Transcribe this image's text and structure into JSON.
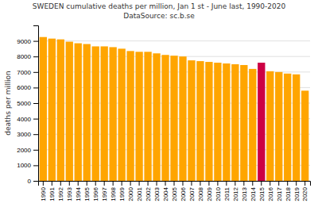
{
  "chart_data": {
    "type": "bar",
    "title": "SWEDEN cumulative deaths per million, Jan 1 st - June last, 1990-2020",
    "subtitle": "DataSource: sc.b.se",
    "ylabel": "deaths per million",
    "categories": [
      "1990",
      "1991",
      "1992",
      "1993",
      "1994",
      "1995",
      "1996",
      "1997",
      "1998",
      "1999",
      "2000",
      "2001",
      "2002",
      "2003",
      "2004",
      "2005",
      "2006",
      "2007",
      "2008",
      "2009",
      "2010",
      "2011",
      "2012",
      "2013",
      "2014",
      "2015",
      "2016",
      "2017",
      "2018",
      "2019",
      "2020"
    ],
    "values": [
      9250,
      9150,
      9100,
      8950,
      8850,
      8800,
      8650,
      8650,
      8600,
      8500,
      8350,
      8300,
      8300,
      8200,
      8100,
      8050,
      8000,
      7750,
      7700,
      7650,
      7600,
      7550,
      7500,
      7450,
      7200,
      7600,
      7050,
      7000,
      6900,
      6850,
      5800
    ],
    "colors": [
      "#FFA500",
      "#FFA500",
      "#FFA500",
      "#FFA500",
      "#FFA500",
      "#FFA500",
      "#FFA500",
      "#FFA500",
      "#FFA500",
      "#FFA500",
      "#FFA500",
      "#FFA500",
      "#FFA500",
      "#FFA500",
      "#FFA500",
      "#FFA500",
      "#FFA500",
      "#FFA500",
      "#FFA500",
      "#FFA500",
      "#FFA500",
      "#FFA500",
      "#FFA500",
      "#FFA500",
      "#FFA500",
      "#CC0044",
      "#FFA500",
      "#FFA500",
      "#FFA500",
      "#FFA500",
      "#FFA500"
    ],
    "ylim": [
      0,
      10000
    ],
    "yticks": [
      0,
      1000,
      2000,
      3000,
      4000,
      5000,
      6000,
      7000,
      8000,
      9000
    ],
    "grid": true
  }
}
